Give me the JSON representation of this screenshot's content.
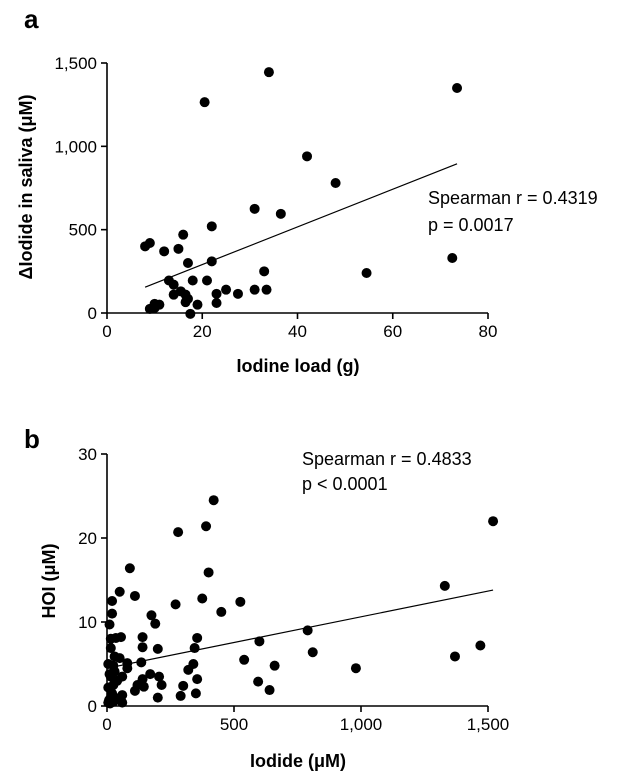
{
  "chart_data": [
    {
      "panel": "a",
      "type": "scatter",
      "xlabel": "Iodine load (g)",
      "ylabel": "ΔIodide in saliva (μM)",
      "xlim": [
        0,
        80
      ],
      "ylim": [
        0,
        1500
      ],
      "xticks": [
        0,
        20,
        40,
        60,
        80
      ],
      "xtick_labels": [
        "0",
        "20",
        "40",
        "60",
        "80"
      ],
      "yticks": [
        0,
        500,
        1000,
        1500
      ],
      "ytick_labels": [
        "0",
        "500",
        "1,000",
        "1,500"
      ],
      "annotation": [
        "Spearman r = 0.4319",
        "p = 0.0017"
      ],
      "trendline": {
        "x": [
          8,
          73.5
        ],
        "y": [
          155,
          895
        ]
      },
      "points": [
        [
          34,
          1445
        ],
        [
          73.5,
          1350
        ],
        [
          20.5,
          1265
        ],
        [
          42,
          940
        ],
        [
          48,
          780
        ],
        [
          31,
          625
        ],
        [
          36.5,
          595
        ],
        [
          22,
          520
        ],
        [
          16,
          470
        ],
        [
          8,
          400
        ],
        [
          9,
          420
        ],
        [
          15,
          385
        ],
        [
          12,
          370
        ],
        [
          22,
          310
        ],
        [
          17,
          300
        ],
        [
          33,
          250
        ],
        [
          54.5,
          240
        ],
        [
          72.5,
          330
        ],
        [
          13,
          195
        ],
        [
          18,
          195
        ],
        [
          21,
          195
        ],
        [
          14,
          170
        ],
        [
          25,
          140
        ],
        [
          27.5,
          115
        ],
        [
          31,
          140
        ],
        [
          33.5,
          140
        ],
        [
          15.5,
          130
        ],
        [
          16.5,
          110
        ],
        [
          23,
          115
        ],
        [
          14,
          110
        ],
        [
          17,
          85
        ],
        [
          19,
          50
        ],
        [
          23,
          60
        ],
        [
          10,
          55
        ],
        [
          11,
          50
        ],
        [
          9,
          25
        ],
        [
          10,
          30
        ],
        [
          16.5,
          65
        ],
        [
          17.5,
          -5
        ]
      ]
    },
    {
      "panel": "b",
      "type": "scatter",
      "xlabel": "Iodide (μM)",
      "ylabel": "HOI (μM)",
      "xlim": [
        0,
        1500
      ],
      "ylim": [
        0,
        30
      ],
      "xticks": [
        0,
        500,
        1000,
        1500
      ],
      "xtick_labels": [
        "0",
        "500",
        "1,000",
        "1,500"
      ],
      "yticks": [
        0,
        10,
        20,
        30
      ],
      "ytick_labels": [
        "0",
        "10",
        "20",
        "30"
      ],
      "annotation": [
        "Spearman r = 0.4833",
        "p < 0.0001"
      ],
      "trendline": {
        "x": [
          0,
          1520
        ],
        "y": [
          4.5,
          13.8
        ]
      },
      "points": [
        [
          420,
          24.5
        ],
        [
          1520,
          22
        ],
        [
          390,
          21.4
        ],
        [
          280,
          20.7
        ],
        [
          90,
          16.4
        ],
        [
          400,
          15.9
        ],
        [
          1330,
          14.3
        ],
        [
          50,
          13.6
        ],
        [
          110,
          13.1
        ],
        [
          20,
          12.5
        ],
        [
          375,
          12.8
        ],
        [
          270,
          12.1
        ],
        [
          525,
          12.4
        ],
        [
          450,
          11.2
        ],
        [
          175,
          10.8
        ],
        [
          20,
          11
        ],
        [
          190,
          9.8
        ],
        [
          10,
          9.7
        ],
        [
          790,
          9
        ],
        [
          140,
          8.2
        ],
        [
          35,
          8.1
        ],
        [
          15,
          8
        ],
        [
          55,
          8.2
        ],
        [
          355,
          8.1
        ],
        [
          600,
          7.7
        ],
        [
          1470,
          7.2
        ],
        [
          200,
          6.8
        ],
        [
          140,
          7
        ],
        [
          15,
          6.9
        ],
        [
          345,
          6.9
        ],
        [
          810,
          6.4
        ],
        [
          50,
          5.7
        ],
        [
          30,
          5.9
        ],
        [
          1370,
          5.9
        ],
        [
          135,
          5.2
        ],
        [
          540,
          5.5
        ],
        [
          5,
          5
        ],
        [
          80,
          5.1
        ],
        [
          25,
          4.8
        ],
        [
          340,
          5
        ],
        [
          660,
          4.8
        ],
        [
          980,
          4.5
        ],
        [
          30,
          4.1
        ],
        [
          80,
          4.5
        ],
        [
          320,
          4.3
        ],
        [
          10,
          3.8
        ],
        [
          170,
          3.8
        ],
        [
          60,
          3.5
        ],
        [
          205,
          3.5
        ],
        [
          15,
          3.5
        ],
        [
          140,
          3.2
        ],
        [
          595,
          2.9
        ],
        [
          355,
          3.2
        ],
        [
          40,
          3
        ],
        [
          120,
          2.5
        ],
        [
          25,
          2.5
        ],
        [
          145,
          2.3
        ],
        [
          215,
          2.5
        ],
        [
          5,
          2.2
        ],
        [
          300,
          2.4
        ],
        [
          20,
          1.5
        ],
        [
          640,
          1.9
        ],
        [
          60,
          1.3
        ],
        [
          110,
          1.8
        ],
        [
          15,
          1
        ],
        [
          290,
          1.2
        ],
        [
          350,
          1.5
        ],
        [
          8,
          0.7
        ],
        [
          40,
          0.9
        ],
        [
          200,
          1
        ],
        [
          5,
          0.4
        ],
        [
          12,
          0.3
        ],
        [
          25,
          0.5
        ],
        [
          60,
          0.4
        ]
      ]
    }
  ]
}
